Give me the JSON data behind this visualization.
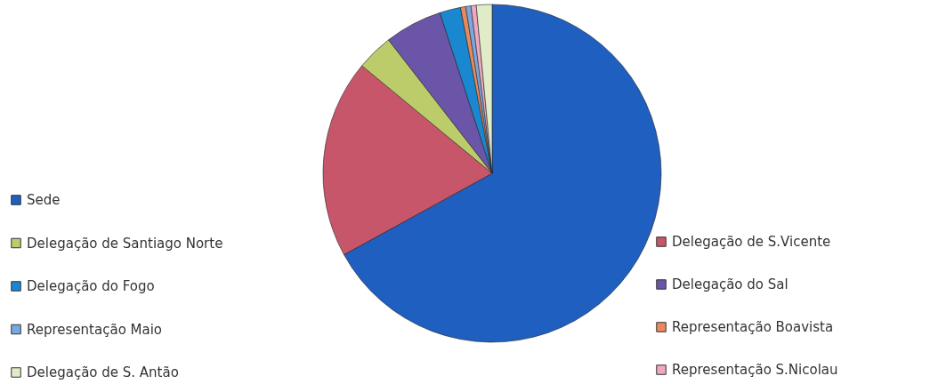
{
  "chart_data": {
    "type": "pie",
    "categories": [
      "Sede",
      "Delegação de S.Vicente",
      "Delegação de Santiago Norte",
      "Delegação do Sal",
      "Delegação do Fogo",
      "Representação Boavista",
      "Representação Maio",
      "Representação S.Nicolau",
      "Delegação de S. Antão"
    ],
    "values": [
      67,
      19,
      3.5,
      5.5,
      2,
      0.5,
      0.5,
      0.5,
      1.5
    ],
    "colors": [
      "#1f5fbf",
      "#c8566a",
      "#bccc6a",
      "#6a55a8",
      "#1a88d0",
      "#e88a5e",
      "#7aa8e0",
      "#f0a8c0",
      "#e0ecc8"
    ],
    "legend": "bottom"
  }
}
